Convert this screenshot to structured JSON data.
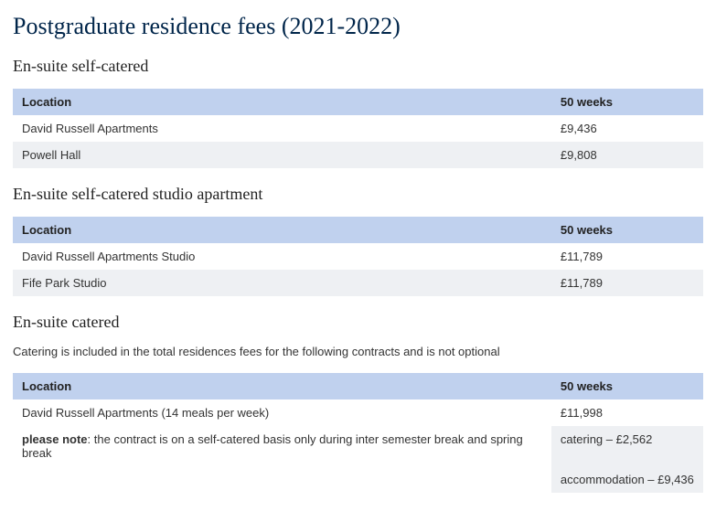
{
  "page": {
    "title": "Postgraduate residence fees (2021-2022)"
  },
  "sections": {
    "selfCatered": {
      "heading": "En-suite self-catered",
      "table": {
        "columns": [
          "Location",
          "50 weeks"
        ],
        "rows": [
          {
            "location": "David Russell Apartments",
            "price": "£9,436"
          },
          {
            "location": "Powell Hall",
            "price": "£9,808"
          }
        ]
      }
    },
    "studio": {
      "heading": "En-suite self-catered studio apartment",
      "table": {
        "columns": [
          "Location",
          "50 weeks"
        ],
        "rows": [
          {
            "location": "David Russell Apartments Studio",
            "price": "£11,789"
          },
          {
            "location": "Fife Park Studio",
            "price": "£11,789"
          }
        ]
      }
    },
    "catered": {
      "heading": "En-suite catered",
      "caption": "Catering is included in the total residences fees for the following contracts and is not optional",
      "table": {
        "columns": [
          "Location",
          "50 weeks"
        ],
        "rows": [
          {
            "location": "David Russell Apartments (14 meals per week)",
            "price": "£11,998"
          }
        ]
      },
      "note": {
        "label": "please note",
        "text": ": the contract is on a self-catered basis only during inter semester break and spring break"
      },
      "breakdown": {
        "catering": "catering – £2,562",
        "accommodation": "accommodation – £9,436"
      }
    }
  },
  "styling": {
    "header_bg": "#c0d1ee",
    "row_alt_bg": "#eef0f3",
    "heading_font": "Georgia",
    "body_font": "Verdana"
  }
}
